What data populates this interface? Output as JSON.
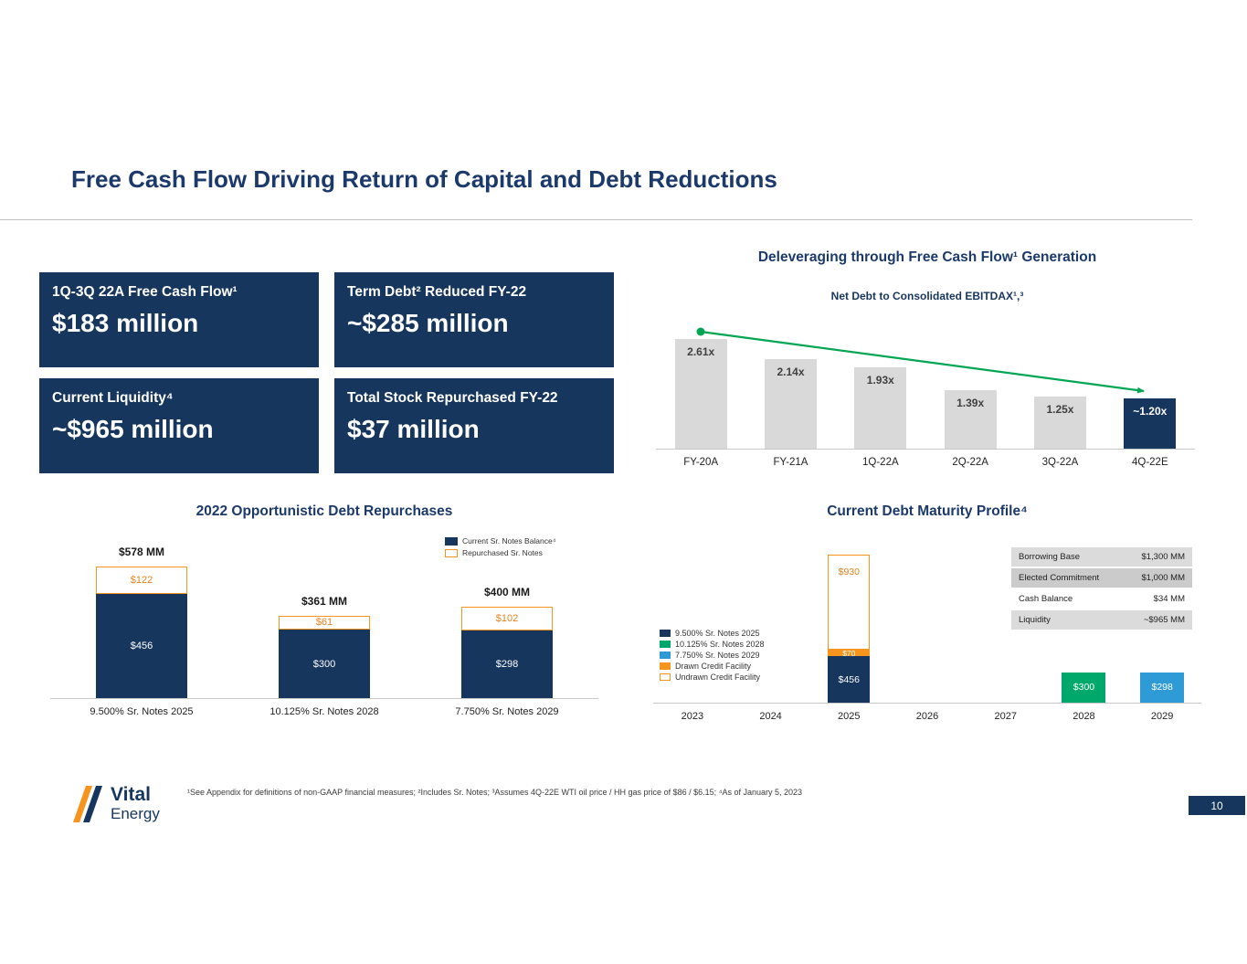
{
  "slide": {
    "title": "Free Cash Flow Driving Return of Capital and Debt Reductions",
    "page_number": "10",
    "footnote": "¹See Appendix for definitions of non-GAAP financial measures; ²Includes Sr. Notes; ³Assumes 4Q-22E WTI oil price / HH gas price of $86 / $6.15; ⁴As of January 5, 2023",
    "logo": {
      "line1": "Vital",
      "line2": "Energy"
    }
  },
  "kpi_boxes": [
    {
      "label": "1Q-3Q 22A Free Cash Flow¹",
      "value": "$183 million"
    },
    {
      "label": "Term Debt² Reduced FY-22",
      "value": "~$285 million"
    },
    {
      "label": "Current Liquidity⁴",
      "value": "~$965 million"
    },
    {
      "label": "Total Stock Repurchased FY-22",
      "value": "$37 million"
    }
  ],
  "colors": {
    "navy": "#16365D",
    "orange": "#F7941D",
    "green": "#00A86B",
    "blue": "#2E9BD6",
    "gray_bar": "#D9D9D9",
    "trend_green": "#00A651"
  },
  "chart_data": [
    {
      "type": "bar",
      "title": "Deleveraging through Free Cash Flow¹ Generation",
      "subtitle": "Net Debt to Consolidated EBITDAX¹,³",
      "categories": [
        "FY-20A",
        "FY-21A",
        "1Q-22A",
        "2Q-22A",
        "3Q-22A",
        "4Q-22E"
      ],
      "values": [
        2.61,
        2.14,
        1.93,
        1.39,
        1.25,
        1.2
      ],
      "labels": [
        "2.61x",
        "2.14x",
        "1.93x",
        "1.39x",
        "1.25x",
        "~1.20x"
      ],
      "highlight_index": 5,
      "trendline": "green descending arrow from FY-20A to 4Q-22E",
      "ylim": [
        0,
        3
      ],
      "grid": false
    },
    {
      "type": "bar",
      "stacked": true,
      "title": "2022 Opportunistic Debt Repurchases",
      "categories": [
        "9.500% Sr. Notes 2025",
        "10.125% Sr. Notes 2028",
        "7.750% Sr. Notes 2029"
      ],
      "series": [
        {
          "name": "Current Sr. Notes Balance⁴",
          "values": [
            456,
            300,
            298
          ],
          "labels": [
            "$456",
            "$300",
            "$298"
          ]
        },
        {
          "name": "Repurchased Sr. Notes",
          "values": [
            122,
            61,
            102
          ],
          "labels": [
            "$122",
            "$61",
            "$102"
          ]
        }
      ],
      "totals": {
        "values": [
          578,
          361,
          400
        ],
        "labels": [
          "$578 MM",
          "$361 MM",
          "$400 MM"
        ]
      },
      "unit": "$MM",
      "ylim": [
        0,
        650
      ],
      "legend_position": "top-right"
    },
    {
      "type": "bar",
      "stacked": true,
      "title": "Current Debt Maturity Profile⁴",
      "categories": [
        "2023",
        "2024",
        "2025",
        "2026",
        "2027",
        "2028",
        "2029"
      ],
      "series": [
        {
          "name": "9.500% Sr. Notes 2025",
          "values": [
            0,
            0,
            456,
            0,
            0,
            0,
            0
          ],
          "label": "$456"
        },
        {
          "name": "10.125% Sr. Notes 2028",
          "values": [
            0,
            0,
            0,
            0,
            0,
            300,
            0
          ],
          "label": "$300"
        },
        {
          "name": "7.750% Sr. Notes 2029",
          "values": [
            0,
            0,
            0,
            0,
            0,
            0,
            298
          ],
          "label": "$298"
        },
        {
          "name": "Drawn Credit Facility",
          "values": [
            0,
            0,
            70,
            0,
            0,
            0,
            0
          ],
          "label": "$70"
        },
        {
          "name": "Undrawn Credit Facility",
          "values": [
            0,
            0,
            930,
            0,
            0,
            0,
            0
          ],
          "label": "$930"
        }
      ],
      "unit": "$MM",
      "legend_position": "left",
      "table": {
        "rows": [
          {
            "label": "Borrowing Base",
            "value": "$1,300 MM"
          },
          {
            "label": "Elected Commitment",
            "value": "$1,000 MM"
          },
          {
            "label": "Cash Balance",
            "value": "$34 MM"
          },
          {
            "label": "Liquidity",
            "value": "~$965 MM"
          }
        ]
      }
    }
  ]
}
